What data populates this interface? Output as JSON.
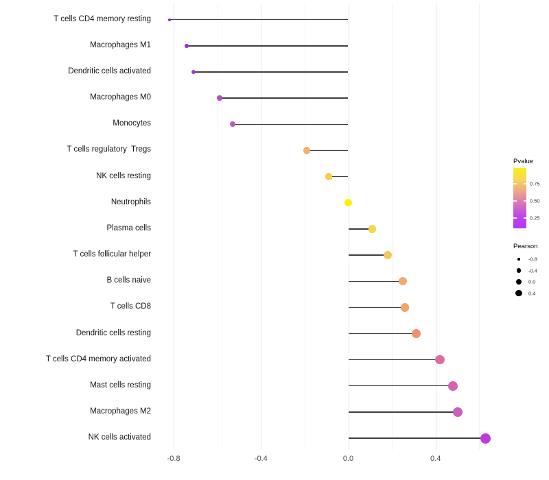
{
  "chart_data": {
    "type": "scatter",
    "variant": "lollipop",
    "orientation": "horizontal",
    "title": "",
    "xlabel": "",
    "ylabel": "",
    "background": "#FFFFFF",
    "grid": "vertical-only",
    "stem_color": "#3D3D3D",
    "x_axis": {
      "range": [
        -0.87,
        0.67
      ],
      "ticks": [
        "-0.8",
        "-0.4",
        "0.0",
        "0.4"
      ],
      "tick_values": [
        -0.8,
        -0.4,
        0.0,
        0.4
      ],
      "minor_gridlines": [
        -0.6,
        -0.2,
        0.2,
        0.6
      ]
    },
    "categories": [
      "T cells CD4 memory resting",
      "Macrophages M1",
      "Dendritic cells activated",
      "Macrophages M0",
      "Monocytes",
      "T cells regulatory  Tregs",
      "NK cells resting",
      "Neutrophils",
      "Plasma cells",
      "T cells follicular helper",
      "B cells naive",
      "T cells CD8",
      "Dendritic cells resting",
      "T cells CD4 memory activated",
      "Mast cells resting",
      "Macrophages M2",
      "NK cells activated"
    ],
    "points": [
      {
        "label": "T cells CD4 memory resting",
        "pearson": -0.82,
        "dot_color": "#8B22DC",
        "dot_radius_px": 2.2
      },
      {
        "label": "Macrophages M1",
        "pearson": -0.74,
        "dot_color": "#9D2BD8",
        "dot_radius_px": 2.8
      },
      {
        "label": "Dendritic cells activated",
        "pearson": -0.71,
        "dot_color": "#A73BD0",
        "dot_radius_px": 3.1
      },
      {
        "label": "Macrophages M0",
        "pearson": -0.59,
        "dot_color": "#B64EC4",
        "dot_radius_px": 3.7
      },
      {
        "label": "Monocytes",
        "pearson": -0.53,
        "dot_color": "#C158B8",
        "dot_radius_px": 4.1
      },
      {
        "label": "T cells regulatory  Tregs",
        "pearson": -0.19,
        "dot_color": "#EDB368",
        "dot_radius_px": 5.1
      },
      {
        "label": "NK cells resting",
        "pearson": -0.09,
        "dot_color": "#F4CE4E",
        "dot_radius_px": 5.3
      },
      {
        "label": "Neutrophils",
        "pearson": 0.0,
        "dot_color": "#FAF303",
        "dot_radius_px": 5.6
      },
      {
        "label": "Plasma cells",
        "pearson": 0.11,
        "dot_color": "#F4D84D",
        "dot_radius_px": 5.8
      },
      {
        "label": "T cells follicular helper",
        "pearson": 0.18,
        "dot_color": "#F0CA5E",
        "dot_radius_px": 6.0
      },
      {
        "label": "B cells naive",
        "pearson": 0.25,
        "dot_color": "#EEAC72",
        "dot_radius_px": 6.1
      },
      {
        "label": "T cells CD8",
        "pearson": 0.26,
        "dot_color": "#EFA56A",
        "dot_radius_px": 6.3
      },
      {
        "label": "Dendritic cells resting",
        "pearson": 0.31,
        "dot_color": "#EC9174",
        "dot_radius_px": 6.5
      },
      {
        "label": "T cells CD4 memory activated",
        "pearson": 0.42,
        "dot_color": "#DC6F9E",
        "dot_radius_px": 6.7
      },
      {
        "label": "Mast cells resting",
        "pearson": 0.48,
        "dot_color": "#D364AE",
        "dot_radius_px": 6.9
      },
      {
        "label": "Macrophages M2",
        "pearson": 0.5,
        "dot_color": "#CE5DBE",
        "dot_radius_px": 7.0
      },
      {
        "label": "NK cells activated",
        "pearson": 0.63,
        "dot_color": "#BB3BDE",
        "dot_radius_px": 7.6
      }
    ],
    "legends": {
      "pvalue": {
        "title": "Pvalue",
        "tick_labels": [
          "0.75",
          "0.50",
          "0.25"
        ],
        "gradient_top_to_bottom": [
          "#FAF11B",
          "#F8D45C",
          "#EBA48C",
          "#D573BC",
          "#BC45E8",
          "#B23AF4"
        ]
      },
      "pearson": {
        "title": "Pearson",
        "items": [
          {
            "label": "-0.8",
            "radius_px": 1.7
          },
          {
            "label": "-0.4",
            "radius_px": 3.2
          },
          {
            "label": "0.0",
            "radius_px": 4.3
          },
          {
            "label": "0.4",
            "radius_px": 4.8
          }
        ]
      }
    }
  }
}
